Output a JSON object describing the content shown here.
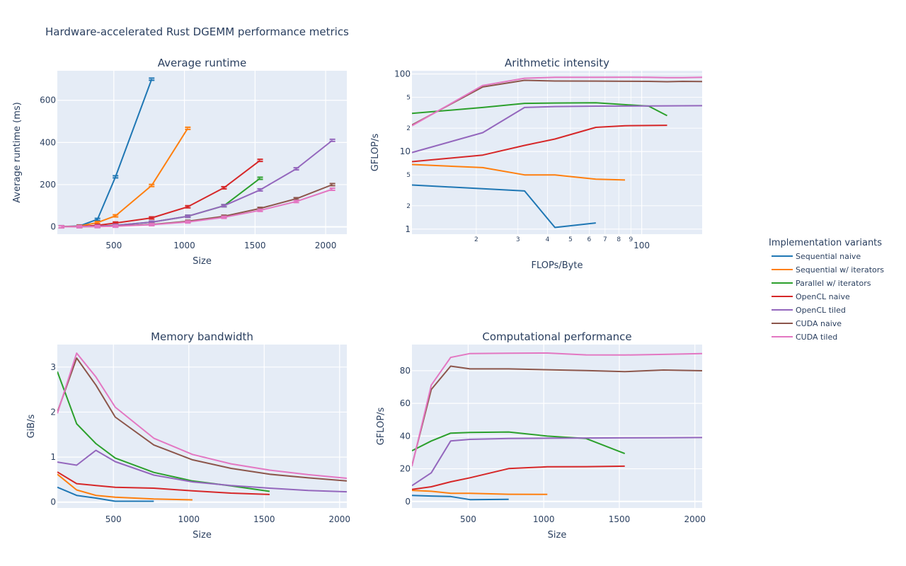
{
  "figure_title": "Hardware-accelerated Rust DGEMM performance metrics",
  "legend": {
    "title": "Implementation variants",
    "placement": "right",
    "items": [
      "Sequential naive",
      "Sequential w/ iterators",
      "Parallel w/ iterators",
      "OpenCL naive",
      "OpenCL tiled",
      "CUDA naive",
      "CUDA tiled"
    ]
  },
  "series_colors": {
    "Sequential naive": "#1f77b4",
    "Sequential w/ iterators": "#ff7f0e",
    "Parallel w/ iterators": "#2ca02c",
    "OpenCL naive": "#d62728",
    "OpenCL tiled": "#9467bd",
    "CUDA naive": "#8c564b",
    "CUDA tiled": "#e377c2"
  },
  "background": {
    "plot": "#e5ecf6",
    "grid": "#ffffff"
  },
  "chart_data": [
    {
      "id": "runtime",
      "type": "line",
      "title": "Average runtime",
      "xlabel": "Size",
      "ylabel": "Average runtime (ms)",
      "xlim": [
        100,
        2150
      ],
      "ylim": [
        -35,
        740
      ],
      "xticks": [
        500,
        1000,
        1500,
        2000
      ],
      "yticks": [
        0,
        200,
        400,
        600
      ],
      "error_bars": true,
      "grid": true,
      "series": [
        {
          "name": "Sequential naive",
          "x": [
            128,
            256,
            384,
            512,
            768
          ],
          "y": [
            0.5,
            4,
            35,
            237,
            700
          ]
        },
        {
          "name": "Sequential w/ iterators",
          "x": [
            128,
            256,
            384,
            512,
            768,
            1024
          ],
          "y": [
            0.3,
            3,
            20,
            52,
            196,
            467
          ]
        },
        {
          "name": "Parallel w/ iterators",
          "x": [
            128,
            256,
            384,
            512,
            768,
            1024,
            1280,
            1536
          ],
          "y": [
            0.2,
            1,
            3,
            7,
            22,
            50,
            100,
            230
          ]
        },
        {
          "name": "OpenCL naive",
          "x": [
            128,
            256,
            384,
            512,
            768,
            1024,
            1280,
            1536
          ],
          "y": [
            0.2,
            1.5,
            7,
            18,
            42,
            95,
            185,
            315
          ]
        },
        {
          "name": "OpenCL tiled",
          "x": [
            128,
            256,
            384,
            512,
            768,
            1024,
            1280,
            1536,
            1792,
            2048
          ],
          "y": [
            0.1,
            0.8,
            3,
            7,
            22,
            50,
            100,
            175,
            275,
            410
          ]
        },
        {
          "name": "CUDA naive",
          "x": [
            128,
            256,
            384,
            512,
            768,
            1024,
            1280,
            1536,
            1792,
            2048
          ],
          "y": [
            0.1,
            0.4,
            1.5,
            3.5,
            11,
            26,
            50,
            87,
            133,
            200
          ]
        },
        {
          "name": "CUDA tiled",
          "x": [
            128,
            256,
            384,
            512,
            768,
            1024,
            1280,
            1536,
            1792,
            2048
          ],
          "y": [
            0.1,
            0.4,
            1.3,
            3,
            10,
            23,
            45,
            78,
            120,
            178
          ]
        }
      ]
    },
    {
      "id": "intensity",
      "type": "line",
      "title": "Arithmetic intensity",
      "xlabel": "FLOPs/Byte",
      "ylabel": "GFLOP/s",
      "xscale": "log",
      "yscale": "log",
      "xlim": [
        10.7,
        180
      ],
      "ylim": [
        0.86,
        110
      ],
      "xticks": [
        {
          "v": 20,
          "t": "2"
        },
        {
          "v": 30,
          "t": "3"
        },
        {
          "v": 40,
          "t": "4"
        },
        {
          "v": 50,
          "t": "5"
        },
        {
          "v": 60,
          "t": "6"
        },
        {
          "v": 70,
          "t": "7"
        },
        {
          "v": 80,
          "t": "8"
        },
        {
          "v": 90,
          "t": "9"
        },
        {
          "v": 100,
          "t": "100",
          "major": true
        }
      ],
      "yticks": [
        {
          "v": 1,
          "t": "1",
          "major": true
        },
        {
          "v": 2,
          "t": "2"
        },
        {
          "v": 5,
          "t": "5"
        },
        {
          "v": 10,
          "t": "10",
          "major": true
        },
        {
          "v": 20,
          "t": "2"
        },
        {
          "v": 50,
          "t": "5"
        },
        {
          "v": 100,
          "t": "100",
          "major": true
        }
      ],
      "grid": true,
      "series": [
        {
          "name": "Sequential naive",
          "x": [
            10.7,
            32,
            43,
            64
          ],
          "y": [
            3.7,
            3.1,
            1.05,
            1.2
          ]
        },
        {
          "name": "Sequential w/ iterators",
          "x": [
            10.7,
            21.3,
            32,
            43,
            64,
            85
          ],
          "y": [
            6.8,
            6.2,
            5.0,
            5.0,
            4.4,
            4.3
          ]
        },
        {
          "name": "Parallel w/ iterators",
          "x": [
            10.7,
            21.3,
            32,
            43,
            64,
            107,
            128
          ],
          "y": [
            31,
            37,
            41.8,
            42.2,
            42.5,
            38.5,
            29
          ]
        },
        {
          "name": "OpenCL naive",
          "x": [
            10.7,
            21.3,
            32,
            43,
            64,
            85,
            128
          ],
          "y": [
            7.4,
            9,
            12,
            14.5,
            20.5,
            21.5,
            21.8
          ]
        },
        {
          "name": "OpenCL tiled",
          "x": [
            10.7,
            21.3,
            32,
            43,
            64,
            85,
            107,
            128,
            149,
            180
          ],
          "y": [
            9.7,
            17.5,
            37,
            38,
            38.5,
            38.6,
            38.7,
            38.8,
            38.9,
            39
          ]
        },
        {
          "name": "CUDA naive",
          "x": [
            10.7,
            21.3,
            32,
            43,
            64,
            85,
            107,
            128,
            149,
            180
          ],
          "y": [
            22,
            68,
            82.8,
            81.1,
            81,
            80.5,
            80.2,
            79.5,
            80.3,
            80
          ]
        },
        {
          "name": "CUDA tiled",
          "x": [
            10.7,
            21.3,
            32,
            43,
            64,
            85,
            107,
            128,
            149,
            180
          ],
          "y": [
            21.5,
            71,
            88,
            90.5,
            90.7,
            90.8,
            90.7,
            89.7,
            89.8,
            90.4
          ]
        }
      ]
    },
    {
      "id": "bandwidth",
      "type": "line",
      "title": "Memory bandwidth",
      "xlabel": "Size",
      "ylabel": "GiB/s",
      "xlim": [
        128,
        2048
      ],
      "ylim": [
        -0.13,
        3.5
      ],
      "xticks": [
        500,
        1000,
        1500,
        2000
      ],
      "yticks": [
        0,
        1,
        2,
        3
      ],
      "grid": true,
      "series": [
        {
          "name": "Sequential naive",
          "x": [
            128,
            256,
            384,
            512,
            768
          ],
          "y": [
            0.33,
            0.15,
            0.09,
            0.02,
            0.02
          ]
        },
        {
          "name": "Sequential w/ iterators",
          "x": [
            128,
            256,
            384,
            512,
            768,
            1024
          ],
          "y": [
            0.62,
            0.27,
            0.15,
            0.11,
            0.07,
            0.05
          ]
        },
        {
          "name": "Parallel w/ iterators",
          "x": [
            128,
            256,
            384,
            512,
            768,
            1024,
            1280,
            1536
          ],
          "y": [
            2.9,
            1.74,
            1.3,
            0.98,
            0.66,
            0.47,
            0.36,
            0.24
          ]
        },
        {
          "name": "OpenCL naive",
          "x": [
            128,
            256,
            384,
            512,
            768,
            1024,
            1280,
            1536
          ],
          "y": [
            0.67,
            0.41,
            0.37,
            0.33,
            0.31,
            0.25,
            0.2,
            0.17
          ]
        },
        {
          "name": "OpenCL tiled",
          "x": [
            128,
            256,
            384,
            512,
            768,
            1024,
            1280,
            1536,
            1792,
            2048
          ],
          "y": [
            0.89,
            0.82,
            1.15,
            0.9,
            0.6,
            0.45,
            0.37,
            0.31,
            0.26,
            0.23
          ]
        },
        {
          "name": "CUDA naive",
          "x": [
            128,
            256,
            384,
            512,
            768,
            1024,
            1280,
            1536,
            1792,
            2048
          ],
          "y": [
            2.0,
            3.2,
            2.6,
            1.89,
            1.27,
            0.94,
            0.75,
            0.62,
            0.54,
            0.47
          ]
        },
        {
          "name": "CUDA tiled",
          "x": [
            128,
            256,
            384,
            512,
            768,
            1024,
            1280,
            1536,
            1792,
            2048
          ],
          "y": [
            1.97,
            3.31,
            2.78,
            2.11,
            1.42,
            1.06,
            0.85,
            0.71,
            0.61,
            0.53
          ]
        }
      ]
    },
    {
      "id": "performance",
      "type": "line",
      "title": "Computational performance",
      "xlabel": "Size",
      "ylabel": "GFLOP/s",
      "xlim": [
        128,
        2048
      ],
      "ylim": [
        -4,
        96
      ],
      "xticks": [
        500,
        1000,
        1500,
        2000
      ],
      "yticks": [
        0,
        20,
        40,
        60,
        80
      ],
      "grid": true,
      "series": [
        {
          "name": "Sequential naive",
          "x": [
            128,
            256,
            384,
            512,
            768
          ],
          "y": [
            3.7,
            3.3,
            3.0,
            1.1,
            1.3
          ]
        },
        {
          "name": "Sequential w/ iterators",
          "x": [
            128,
            256,
            384,
            512,
            768,
            1024
          ],
          "y": [
            6.8,
            6.2,
            5.0,
            5.0,
            4.4,
            4.3
          ]
        },
        {
          "name": "Parallel w/ iterators",
          "x": [
            128,
            256,
            384,
            512,
            768,
            1024,
            1280,
            1536
          ],
          "y": [
            31,
            37,
            41.8,
            42.2,
            42.5,
            40,
            38.5,
            29.3
          ]
        },
        {
          "name": "OpenCL naive",
          "x": [
            128,
            256,
            384,
            512,
            768,
            1024,
            1280,
            1536
          ],
          "y": [
            7.4,
            9,
            12,
            14.5,
            20.1,
            21.2,
            21.3,
            21.6
          ]
        },
        {
          "name": "OpenCL tiled",
          "x": [
            128,
            256,
            384,
            512,
            768,
            1024,
            1280,
            1536,
            1792,
            2048
          ],
          "y": [
            9.7,
            17.5,
            37,
            38,
            38.5,
            38.7,
            38.8,
            38.9,
            39,
            39.1
          ]
        },
        {
          "name": "CUDA naive",
          "x": [
            128,
            256,
            384,
            512,
            768,
            1024,
            1280,
            1536,
            1792,
            2048
          ],
          "y": [
            22,
            68.5,
            82.8,
            81.1,
            81.1,
            80.6,
            80.1,
            79.4,
            80.4,
            80
          ]
        },
        {
          "name": "CUDA tiled",
          "x": [
            128,
            256,
            384,
            512,
            768,
            1024,
            1280,
            1536,
            1792,
            2048
          ],
          "y": [
            21.5,
            71.2,
            88.1,
            90.5,
            90.7,
            90.8,
            89.7,
            89.6,
            90,
            90.5
          ]
        }
      ]
    }
  ]
}
